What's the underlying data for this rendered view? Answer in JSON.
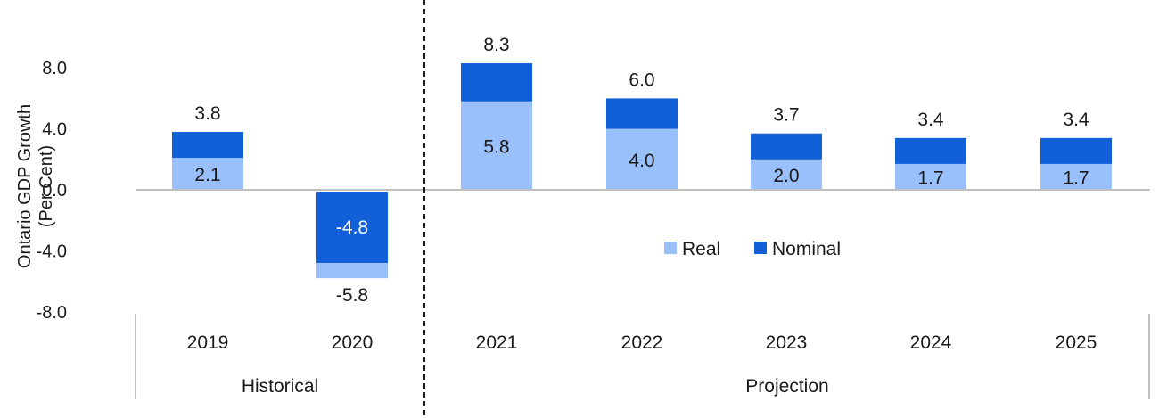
{
  "chart_data": {
    "type": "bar",
    "stacked_display": "overlay",
    "ylabel": [
      "Ontario GDP Growth",
      "(Per Cent)"
    ],
    "ylim": [
      -8,
      8
    ],
    "yticks": [
      "8.0",
      "4.0",
      "0.0",
      "-4.0",
      "-8.0"
    ],
    "ytick_values": [
      8,
      4,
      0,
      -4,
      -8
    ],
    "categories": [
      "2019",
      "2020",
      "2021",
      "2022",
      "2023",
      "2024",
      "2025"
    ],
    "groups": [
      {
        "label": "Historical",
        "categories": [
          "2019",
          "2020"
        ]
      },
      {
        "label": "Projection",
        "categories": [
          "2021",
          "2022",
          "2023",
          "2024",
          "2025"
        ]
      }
    ],
    "series": [
      {
        "name": "Real",
        "color": "#99c0fb",
        "values": [
          2.1,
          -5.8,
          5.8,
          4.0,
          2.0,
          1.7,
          1.7
        ],
        "labels": [
          "2.1",
          "-5.8",
          "5.8",
          "4.0",
          "2.0",
          "1.7",
          "1.7"
        ]
      },
      {
        "name": "Nominal",
        "color": "#1260d8",
        "values": [
          3.8,
          -4.8,
          8.3,
          6.0,
          3.7,
          3.4,
          3.4
        ],
        "labels": [
          "3.8",
          "-4.8",
          "8.3",
          "6.0",
          "3.7",
          "3.4",
          "3.4"
        ]
      }
    ],
    "legend": "center-right",
    "grid": false
  }
}
